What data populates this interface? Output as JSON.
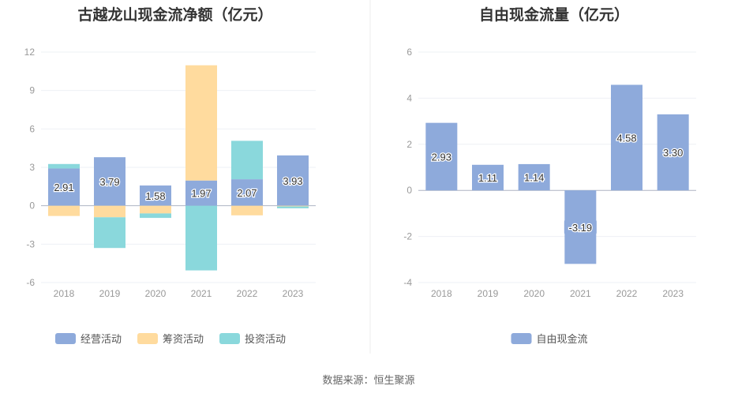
{
  "source_text": "数据来源：恒生聚源",
  "chart_data": [
    {
      "type": "bar",
      "stacked": true,
      "title": "古越龙山现金流净额（亿元）",
      "categories": [
        "2018",
        "2019",
        "2020",
        "2021",
        "2022",
        "2023"
      ],
      "ylim": [
        -6,
        12
      ],
      "yticks": [
        -6,
        -3,
        0,
        3,
        6,
        9,
        12
      ],
      "grid": true,
      "legend_position": "bottom-center",
      "series": [
        {
          "name": "经营活动",
          "color": "#8eaadb",
          "values": [
            2.91,
            3.79,
            1.58,
            1.97,
            2.07,
            3.93
          ],
          "labels": [
            "2.91",
            "3.79",
            "1.58",
            "1.97",
            "2.07",
            "3.93"
          ]
        },
        {
          "name": "筹资活动",
          "color": "#ffdb9e",
          "values": [
            -0.8,
            -0.9,
            -0.6,
            9.0,
            -0.75,
            -0.05
          ]
        },
        {
          "name": "投资活动",
          "color": "#8ad8dc",
          "values": [
            0.35,
            -2.4,
            -0.35,
            -5.05,
            3.0,
            -0.15
          ]
        }
      ]
    },
    {
      "type": "bar",
      "title": "自由现金流量（亿元）",
      "categories": [
        "2018",
        "2019",
        "2020",
        "2021",
        "2022",
        "2023"
      ],
      "ylim": [
        -4,
        6
      ],
      "yticks": [
        -4,
        -2,
        0,
        2,
        4,
        6
      ],
      "grid": true,
      "legend_position": "bottom-center",
      "series": [
        {
          "name": "自由现金流",
          "color": "#8eaadb",
          "values": [
            2.93,
            1.11,
            1.14,
            -3.19,
            4.58,
            3.3
          ],
          "labels": [
            "2.93",
            "1.11",
            "1.14",
            "-3.19",
            "4.58",
            "3.30"
          ]
        }
      ]
    }
  ]
}
